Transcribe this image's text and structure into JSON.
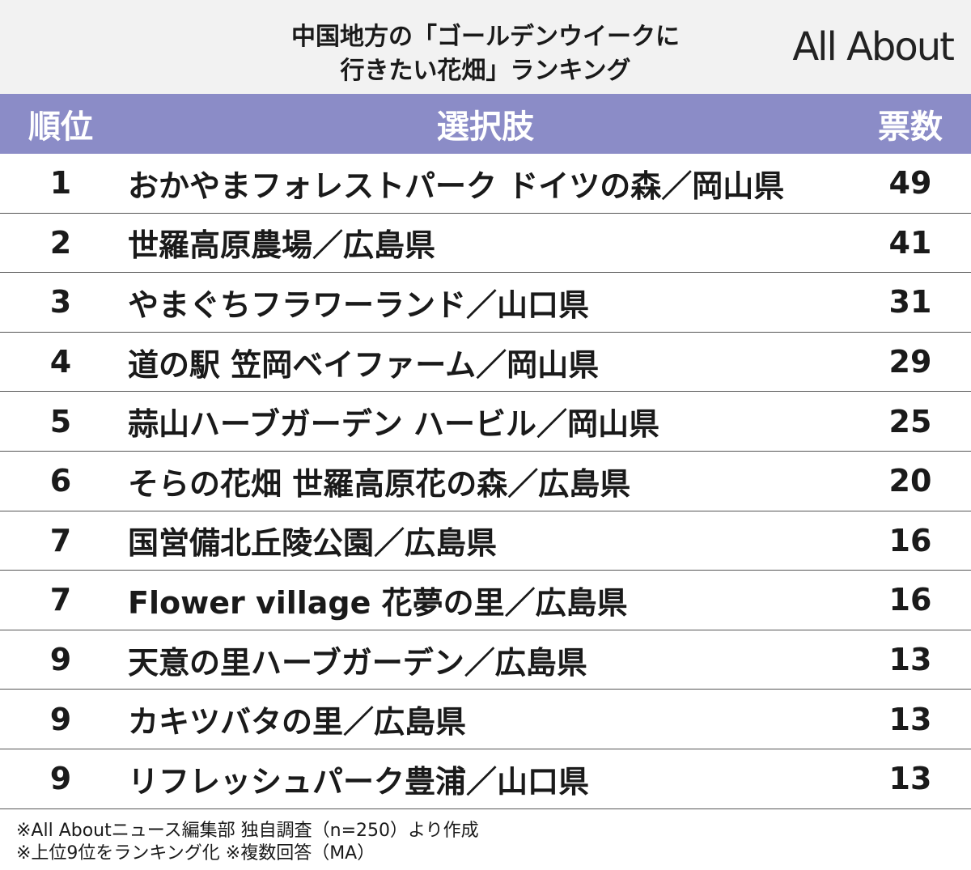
{
  "header": {
    "title_lines": [
      "中国地方の「ゴールデンウイークに",
      "行きたい花畑」ランキング"
    ],
    "logo": "All About"
  },
  "table": {
    "columns": [
      "順位",
      "選択肢",
      "票数"
    ],
    "rows": [
      [
        1,
        "おかやまフォレストパーク ドイツの森／岡山県",
        49
      ],
      [
        2,
        "世羅高原農場／広島県",
        41
      ],
      [
        3,
        "やまぐちフラワーランド／山口県",
        31
      ],
      [
        4,
        "道の駅 笠岡ベイファーム／岡山県",
        29
      ],
      [
        5,
        "蒜山ハーブガーデン ハービル／岡山県",
        25
      ],
      [
        6,
        "そらの花畑 世羅高原花の森／広島県",
        20
      ],
      [
        7,
        "国営備北丘陵公園／広島県",
        16
      ],
      [
        7,
        "Flower village 花夢の里／広島県",
        16
      ],
      [
        9,
        "天意の里ハーブガーデン／広島県",
        13
      ],
      [
        9,
        "カキツバタの里／広島県",
        13
      ],
      [
        9,
        "リフレッシュパーク豊浦／山口県",
        13
      ]
    ]
  },
  "footnotes": [
    "※All Aboutニュース編集部 独自調査（n=250）より作成",
    "※上位9位をランキング化 ※複数回答（MA）"
  ]
}
